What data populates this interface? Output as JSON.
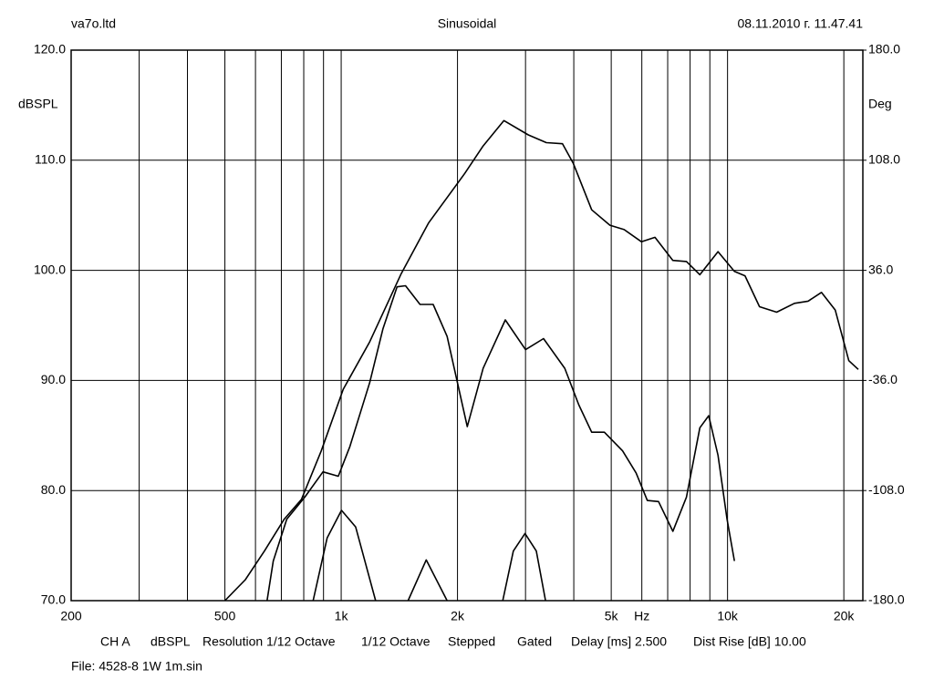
{
  "header": {
    "left": "va7o.ltd",
    "center": "Sinusoidal",
    "right": "08.11.2010 г. 11.47.41"
  },
  "footer": {
    "settings": [
      "CH A",
      "dBSPL",
      "Resolution 1/12 Octave",
      "1/12 Octave",
      "Stepped",
      "Gated",
      "Delay [ms] 2.500",
      "Dist Rise [dB] 10.00"
    ],
    "file": "File: 4528-8 1W 1m.sin"
  },
  "chart_data": {
    "type": "line",
    "log_x": true,
    "grid": true,
    "y_label": "dBSPL",
    "y2_label": "Deg",
    "x_label": "Hz",
    "xlim": [
      200,
      22400
    ],
    "ylim": [
      70,
      120
    ],
    "y2lim": [
      -180,
      180
    ],
    "xticks": [
      200,
      500,
      {
        "value": 1000,
        "label": "1k"
      },
      {
        "value": 2000,
        "label": "2k"
      },
      {
        "value": 5000,
        "label": "5k"
      },
      {
        "value": 10000,
        "label": "10k"
      },
      {
        "value": 20000,
        "label": "20k"
      }
    ],
    "x_label_at": 6000,
    "xgrid": [
      300,
      400,
      600,
      700,
      800,
      900,
      3000,
      4000,
      6000,
      7000,
      8000,
      9000
    ],
    "yticks": [
      {
        "value": 70,
        "label": "70.0"
      },
      {
        "value": 80,
        "label": "80.0"
      },
      {
        "value": 90,
        "label": "90.0"
      },
      {
        "value": 100,
        "label": "100.0"
      },
      {
        "value": 110,
        "label": "110.0"
      },
      {
        "value": 120,
        "label": "120.0"
      }
    ],
    "y2ticks": [
      {
        "value": -180,
        "label": "-180.0"
      },
      {
        "value": -108,
        "label": "-108.0"
      },
      {
        "value": -36,
        "label": "-36.0"
      },
      {
        "value": 36,
        "label": "36.0"
      },
      {
        "value": 108,
        "label": "108.0"
      },
      {
        "value": 180,
        "label": "180.0"
      }
    ],
    "series": [
      {
        "color": "#000000",
        "x": [
          500,
          565,
          633,
          712,
          789,
          888,
          1012,
          1185,
          1430,
          1683,
          2088,
          2330,
          2638,
          3050,
          3396,
          3740,
          3990,
          4450,
          4960,
          5400,
          5985,
          6490,
          7220,
          7830,
          8480,
          9450,
          10420,
          11100,
          12100,
          13400,
          14900,
          16170,
          17500,
          19000,
          20600,
          21800
        ],
        "values": [
          70,
          71.9,
          74.5,
          77.4,
          79.2,
          83.6,
          89.2,
          93.5,
          99.7,
          104.3,
          108.8,
          111.3,
          113.6,
          112.3,
          111.6,
          111.5,
          109.7,
          105.5,
          104.1,
          103.7,
          102.6,
          103.0,
          100.9,
          100.8,
          99.6,
          101.7,
          99.9,
          99.5,
          96.7,
          96.2,
          97.0,
          97.2,
          98.0,
          96.4,
          91.8,
          91.0
        ]
      },
      {
        "color": "#000000",
        "x": [
          643,
          667,
          723,
          805,
          897,
          983,
          1053,
          1185,
          1283,
          1395,
          1467,
          1600,
          1730,
          1880,
          2120,
          2330,
          2660,
          3000,
          3340,
          3790,
          4120,
          4450,
          4800,
          5350,
          5800,
          6200,
          6630,
          7220,
          7830,
          8480,
          8940,
          9450,
          9970,
          10420
        ],
        "values": [
          70,
          73.6,
          77.4,
          79.4,
          81.7,
          81.3,
          84.0,
          89.8,
          94.7,
          98.5,
          98.6,
          96.9,
          96.9,
          94.0,
          85.8,
          91.1,
          95.5,
          92.8,
          93.8,
          91.1,
          87.8,
          85.3,
          85.3,
          83.6,
          81.6,
          79.1,
          79.0,
          76.3,
          79.4,
          85.7,
          86.8,
          83.2,
          77.4,
          73.6
        ]
      },
      {
        "color": "#000000",
        "x": [
          846,
          920,
          1002,
          1090,
          1228,
          null,
          1490,
          1660,
          1880,
          null,
          2620,
          2790,
          2990,
          3200,
          3380
        ],
        "values": [
          70,
          75.7,
          78.2,
          76.7,
          70,
          null,
          70,
          73.7,
          70,
          null,
          70,
          74.5,
          76.1,
          74.5,
          70
        ]
      }
    ]
  }
}
